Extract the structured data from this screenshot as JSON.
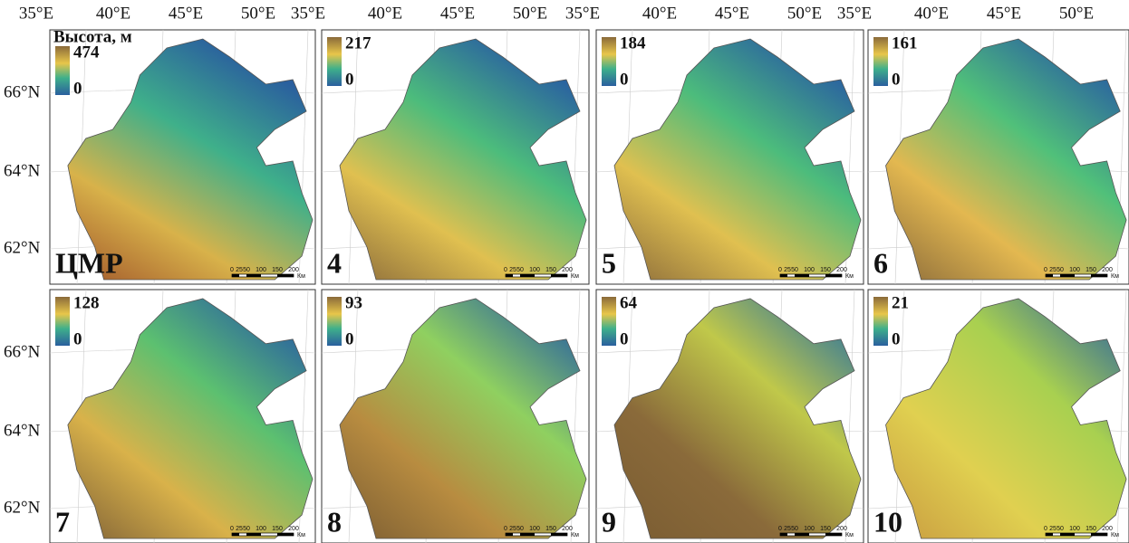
{
  "longitude_labels": [
    "35°E",
    "40°E",
    "45°E",
    "50°E"
  ],
  "latitude_labels": [
    "66°N",
    "64°N",
    "62°N"
  ],
  "legend_title": "Высота, м",
  "scale_bar": {
    "ticks": [
      "0",
      "25",
      "50",
      "100",
      "150",
      "200"
    ],
    "unit": "Км"
  },
  "panels": [
    {
      "label": "ЦМР",
      "max": "474",
      "min": "0"
    },
    {
      "label": "4",
      "max": "217",
      "min": "0"
    },
    {
      "label": "5",
      "max": "184",
      "min": "0"
    },
    {
      "label": "6",
      "max": "161",
      "min": "0"
    },
    {
      "label": "7",
      "max": "128",
      "min": "0"
    },
    {
      "label": "8",
      "max": "93",
      "min": "0"
    },
    {
      "label": "9",
      "max": "64",
      "min": "0"
    },
    {
      "label": "10",
      "max": "21",
      "min": "0"
    }
  ]
}
